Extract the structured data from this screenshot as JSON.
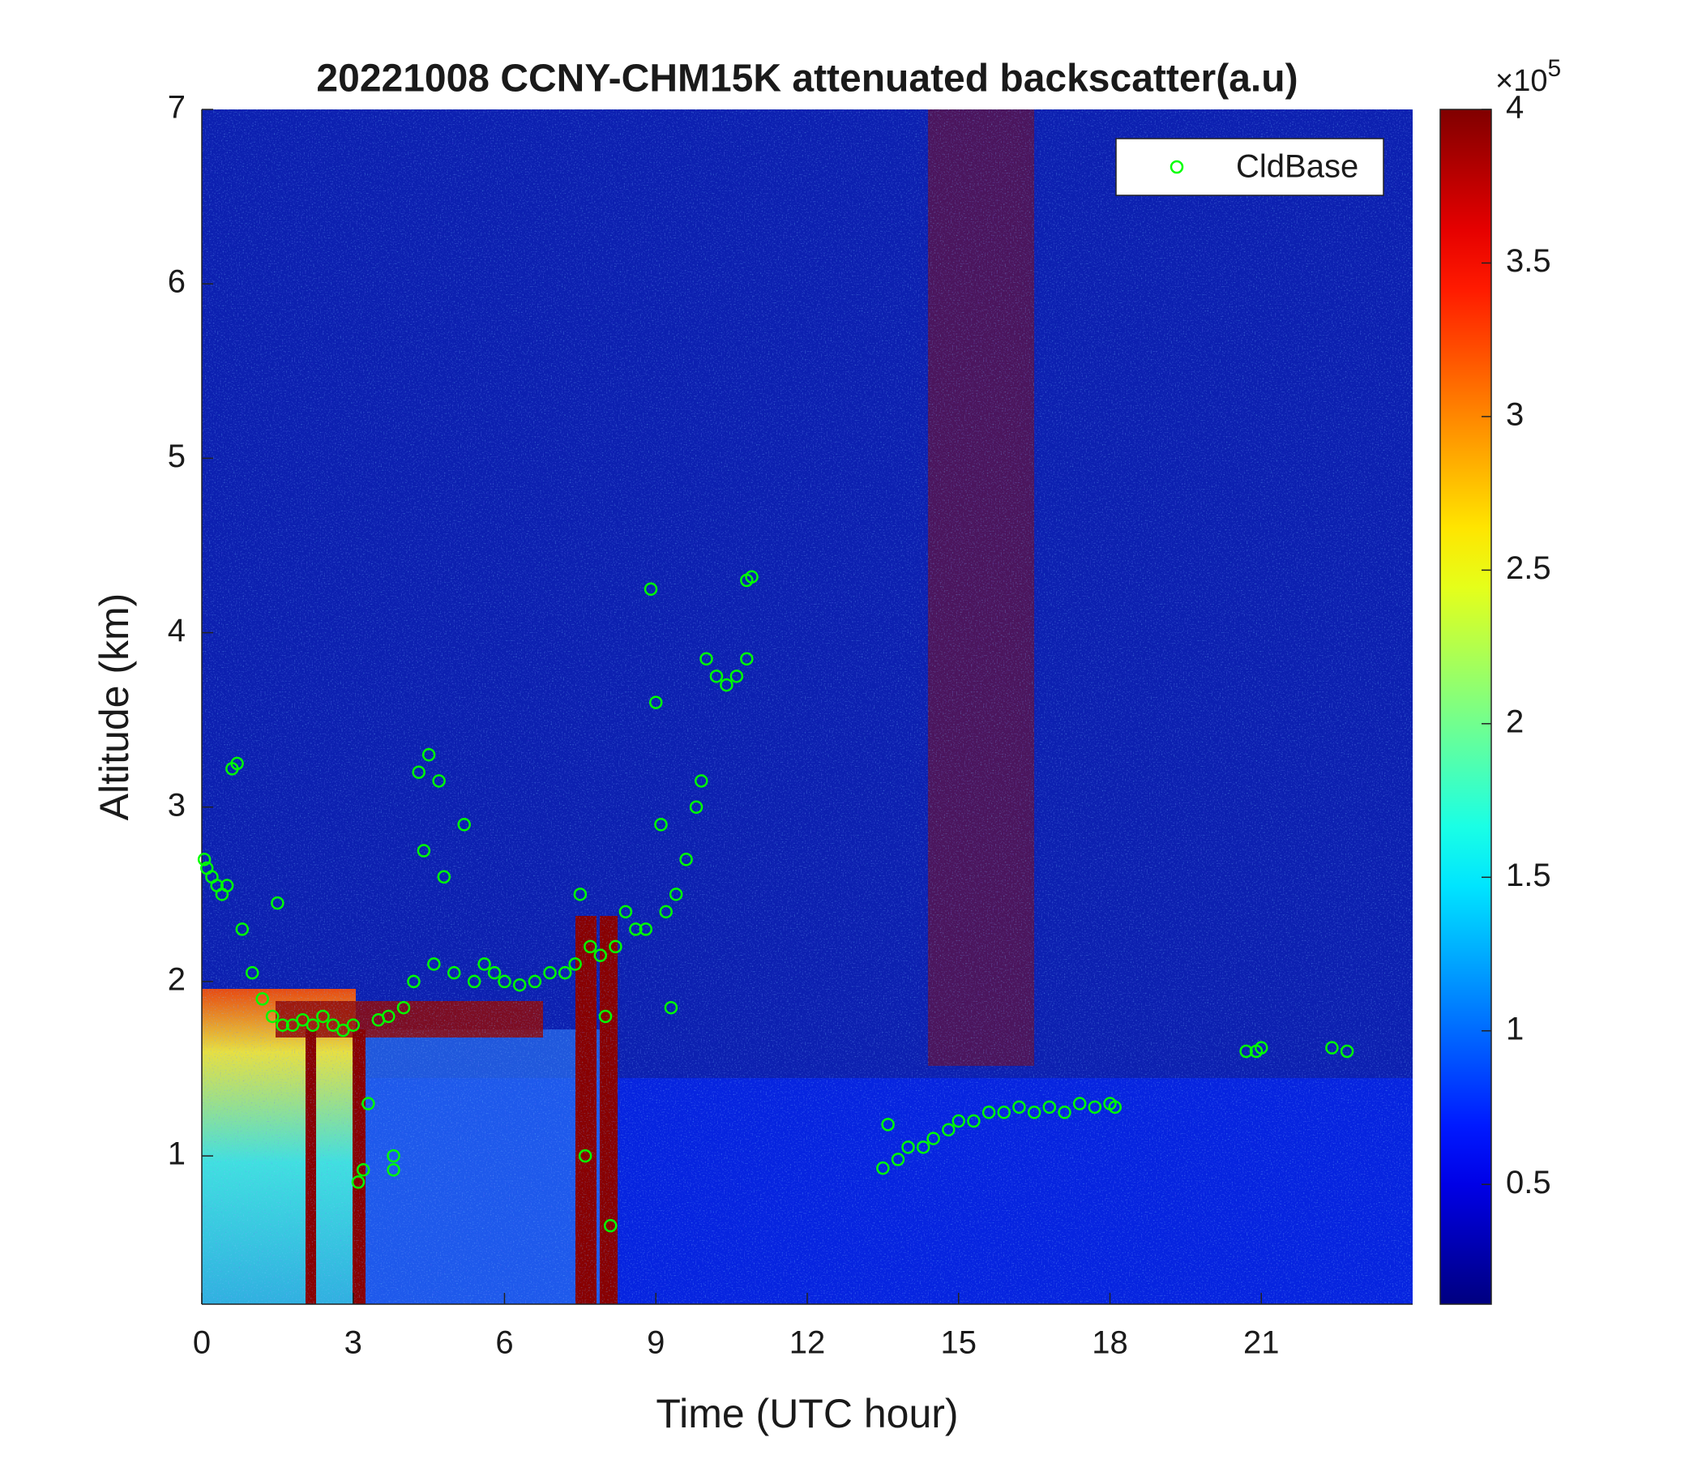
{
  "chart_data": {
    "type": "scatter",
    "title": "20221008 CCNY-CHM15K attenuated backscatter(a.u)",
    "xlabel": "Time (UTC hour)",
    "ylabel": "Altitude (km)",
    "xlim": [
      0,
      24
    ],
    "xticks": [
      0,
      3,
      6,
      9,
      12,
      15,
      18,
      21
    ],
    "ylim": [
      0.15,
      7
    ],
    "yticks": [
      1,
      2,
      3,
      4,
      5,
      6,
      7
    ],
    "legend": "upper right",
    "colormap": "jet",
    "colorbar": {
      "clim": [
        0.11,
        4
      ],
      "ticks": [
        0.5,
        1,
        1.5,
        2,
        2.5,
        3,
        3.5,
        4
      ],
      "multiplier": "×10",
      "exponent": "5"
    },
    "series": [
      {
        "name": "CldBase",
        "color": "#00ff00",
        "x": [
          0.05,
          0.1,
          0.2,
          0.3,
          0.4,
          0.5,
          0.6,
          0.7,
          0.8,
          1.0,
          1.2,
          1.4,
          1.5,
          1.6,
          1.8,
          2.0,
          2.2,
          2.4,
          2.6,
          2.8,
          3.0,
          3.1,
          3.2,
          3.3,
          3.5,
          3.7,
          3.8,
          3.8,
          4.0,
          4.2,
          4.3,
          4.4,
          4.5,
          4.6,
          4.7,
          4.8,
          5.0,
          5.2,
          5.4,
          5.6,
          5.8,
          6.0,
          6.3,
          6.6,
          6.9,
          7.2,
          7.4,
          7.5,
          7.6,
          7.7,
          7.9,
          8.0,
          8.1,
          8.2,
          8.4,
          8.6,
          8.8,
          8.9,
          9.0,
          9.1,
          9.2,
          9.3,
          9.4,
          9.6,
          9.8,
          9.9,
          10.0,
          10.2,
          10.4,
          10.6,
          10.8,
          10.8,
          10.9,
          13.5,
          13.6,
          13.8,
          14.0,
          14.3,
          14.5,
          14.8,
          15.0,
          15.3,
          15.6,
          15.9,
          16.2,
          16.5,
          16.8,
          17.1,
          17.4,
          17.7,
          18.0,
          18.1,
          20.7,
          20.9,
          21.0,
          22.4,
          22.7
        ],
        "values": [
          2.7,
          2.65,
          2.6,
          2.55,
          2.5,
          2.55,
          3.22,
          3.25,
          2.3,
          2.05,
          1.9,
          1.8,
          2.45,
          1.75,
          1.75,
          1.78,
          1.75,
          1.8,
          1.75,
          1.72,
          1.75,
          0.85,
          0.92,
          1.3,
          1.78,
          1.8,
          1.0,
          0.92,
          1.85,
          2.0,
          3.2,
          2.75,
          3.3,
          2.1,
          3.15,
          2.6,
          2.05,
          2.9,
          2.0,
          2.1,
          2.05,
          2.0,
          1.98,
          2.0,
          2.05,
          2.05,
          2.1,
          2.5,
          1.0,
          2.2,
          2.15,
          1.8,
          0.6,
          2.2,
          2.4,
          2.3,
          2.3,
          4.25,
          3.6,
          2.9,
          2.4,
          1.85,
          2.5,
          2.7,
          3.0,
          3.15,
          3.85,
          3.75,
          3.7,
          3.75,
          3.85,
          4.3,
          4.32,
          0.93,
          1.18,
          0.98,
          1.05,
          1.05,
          1.1,
          1.15,
          1.2,
          1.2,
          1.25,
          1.25,
          1.28,
          1.25,
          1.28,
          1.25,
          1.3,
          1.28,
          1.3,
          1.28,
          1.6,
          1.6,
          1.62,
          1.62,
          1.6
        ]
      }
    ]
  }
}
